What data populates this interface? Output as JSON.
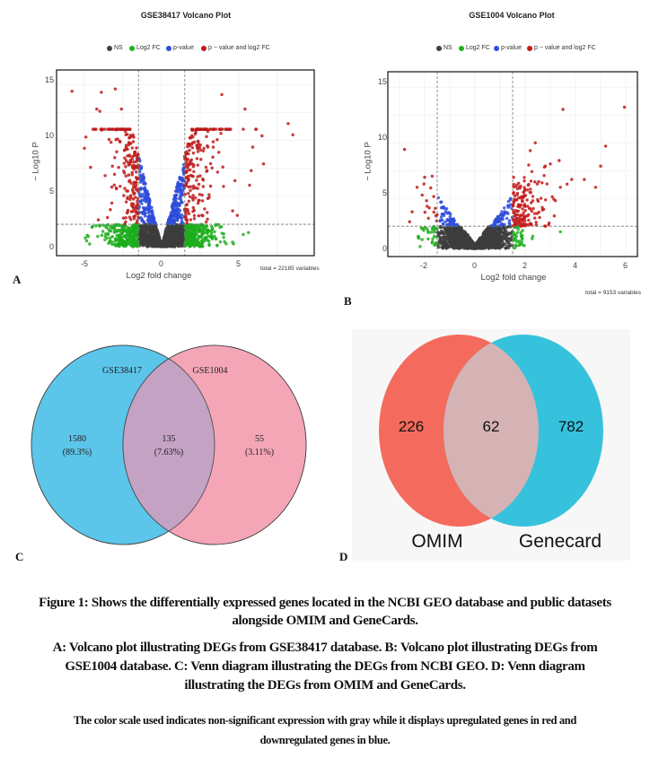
{
  "chart_data": [
    {
      "panel": "A",
      "type": "scatter",
      "title": "GSE38417 Volcano Plot",
      "xlabel": "Log2 fold change",
      "ylabel": "− Log10 P",
      "xlim": [
        -6.8,
        9.9
      ],
      "ylim": [
        -0.7,
        15.8
      ],
      "xticks": [
        "-5",
        "0",
        "5"
      ],
      "yticks": [
        "0",
        "5",
        "10",
        "15"
      ],
      "grid": true,
      "thresholds": {
        "log2fc": 1.5,
        "neg_log10_p": 2
      },
      "legend_position": "top",
      "legend": [
        {
          "label": "NS",
          "color": "#404040"
        },
        {
          "label": "Log2 FC",
          "color": "#1db31d"
        },
        {
          "label": "p-value",
          "color": "#2f4fe0"
        },
        {
          "label": "p − value and log2 FC",
          "color": "#c41a1a"
        }
      ],
      "total": "total = 22185 variables"
    },
    {
      "panel": "B",
      "type": "scatter",
      "title": "GSE1004 Volcano Plot",
      "xlabel": "Log2 fold change",
      "ylabel": "− Log10 P",
      "xlim": [
        -3.5,
        6.4
      ],
      "ylim": [
        -0.7,
        15.5
      ],
      "xticks": [
        "-2",
        "0",
        "2",
        "4",
        "6"
      ],
      "yticks": [
        "0",
        "5",
        "10",
        "15"
      ],
      "grid": true,
      "thresholds": {
        "log2fc": 1.5,
        "neg_log10_p": 2
      },
      "legend_position": "top",
      "legend": [
        {
          "label": "NS",
          "color": "#404040"
        },
        {
          "label": "Log2 FC",
          "color": "#1db31d"
        },
        {
          "label": "p-value",
          "color": "#2f4fe0"
        },
        {
          "label": "p − value and log2 FC",
          "color": "#c41a1a"
        }
      ],
      "total": "total = 9153 variables"
    },
    {
      "panel": "C",
      "type": "venn",
      "sets": [
        {
          "label": "GSE38417",
          "color": "#5cc5ea"
        },
        {
          "label": "GSE1004",
          "color": "#f4a6b6"
        }
      ],
      "overlap_color": "#c4a2c4",
      "regions": [
        {
          "count": "1580",
          "pct": "(89.3%)"
        },
        {
          "count": "135",
          "pct": "(7.63%)"
        },
        {
          "count": "55",
          "pct": "(3.11%)"
        }
      ]
    },
    {
      "panel": "D",
      "type": "venn",
      "sets": [
        {
          "label": "OMIM",
          "color": "#f46b5e"
        },
        {
          "label": "Genecard",
          "color": "#36c2dc"
        }
      ],
      "overlap_color": "#d5b3b5",
      "regions": [
        {
          "count": "226"
        },
        {
          "count": "62"
        },
        {
          "count": "782"
        }
      ]
    }
  ],
  "panel_letters": [
    "A",
    "B",
    "C",
    "D"
  ],
  "caption": {
    "title_line1": "Figure 1: Shows the differentially expressed genes located in the NCBI GEO database and public datasets",
    "title_line2": "alongside OMIM and GeneCards.",
    "desc_line1": "A: Volcano plot illustrating DEGs from GSE38417 database. B: Volcano plot illustrating DEGs from",
    "desc_line2": "GSE1004 database.  C: Venn diagram illustrating the DEGs from NCBI GEO. D: Venn diagram",
    "desc_line3": "illustrating the DEGs from OMIM and GeneCards.",
    "note_line1": "The color scale used indicates non-significant expression with gray while it displays upregulated genes in red and",
    "note_line2": "downregulated genes in blue."
  }
}
